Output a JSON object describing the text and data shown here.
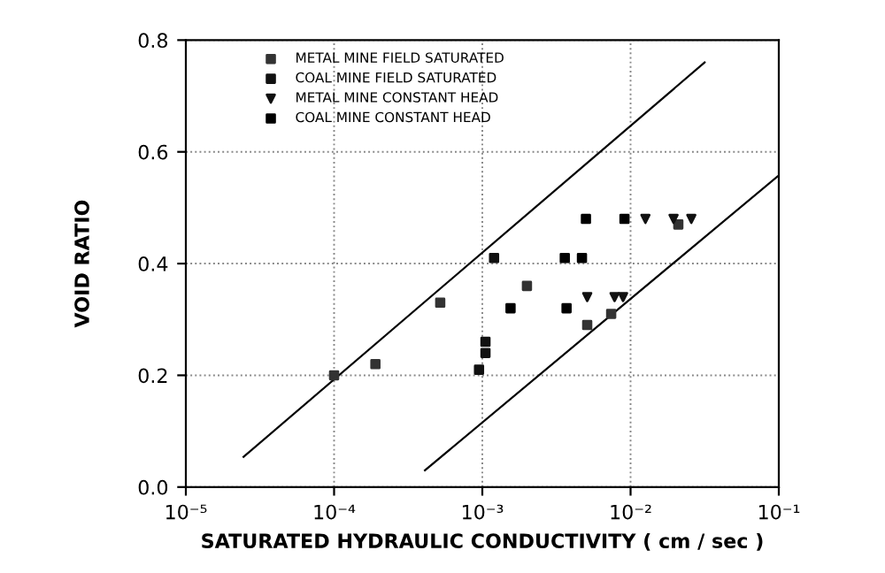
{
  "chart_data": {
    "type": "scatter",
    "xlabel": "SATURATED HYDRAULIC CONDUCTIVITY ( cm / sec )",
    "ylabel": "VOID RATIO",
    "log": "x",
    "xlim": [
      1e-05,
      0.1
    ],
    "xticks": [
      {
        "value": 1e-05,
        "label": "10⁻⁵"
      },
      {
        "value": 0.0001,
        "label": "10⁻⁴"
      },
      {
        "value": 0.001,
        "label": "10⁻³"
      },
      {
        "value": 0.01,
        "label": "10⁻²"
      },
      {
        "value": 0.1,
        "label": "10⁻¹"
      }
    ],
    "ylim": [
      0,
      0.8
    ],
    "yticks": [
      {
        "value": 0,
        "label": "0.0"
      },
      0.2,
      0.4,
      0.6,
      0.8
    ],
    "grid": true,
    "legend": "top left",
    "series": [
      {
        "name": "METAL MINE FIELD SATURATED",
        "color": "#333333",
        "marker": "square",
        "x": [
          0.0001,
          0.00019,
          0.00052,
          0.002,
          0.0051,
          0.0074,
          0.021
        ],
        "values": [
          0.2,
          0.22,
          0.33,
          0.36,
          0.29,
          0.31,
          0.47
        ]
      },
      {
        "name": "COAL MINE FIELD SATURATED",
        "color": "#111111",
        "marker": "square",
        "x": [
          0.00095,
          0.00105,
          0.00105,
          0.0012
        ],
        "values": [
          0.21,
          0.26,
          0.24,
          0.41
        ]
      },
      {
        "name": "METAL MINE CONSTANT HEAD",
        "color": "#111111",
        "marker": "triangle",
        "x": [
          0.0051,
          0.0078,
          0.0089,
          0.0126,
          0.0195,
          0.0257
        ],
        "values": [
          0.34,
          0.34,
          0.34,
          0.48,
          0.48,
          0.48
        ]
      },
      {
        "name": "COAL MINE CONSTANT HEAD",
        "color": "#000000",
        "marker": "square",
        "x": [
          0.00155,
          0.0036,
          0.0037,
          0.0047,
          0.005,
          0.0091
        ],
        "values": [
          0.32,
          0.41,
          0.32,
          0.41,
          0.48,
          0.48
        ]
      },
      {
        "type": "line",
        "color": "#000000",
        "x": [
          2.45e-05,
          0.0316
        ],
        "values": [
          0.054,
          0.76
        ]
      },
      {
        "type": "line",
        "color": "#000000",
        "x": [
          0.00041,
          0.098
        ],
        "values": [
          0.03,
          0.556
        ]
      }
    ]
  }
}
